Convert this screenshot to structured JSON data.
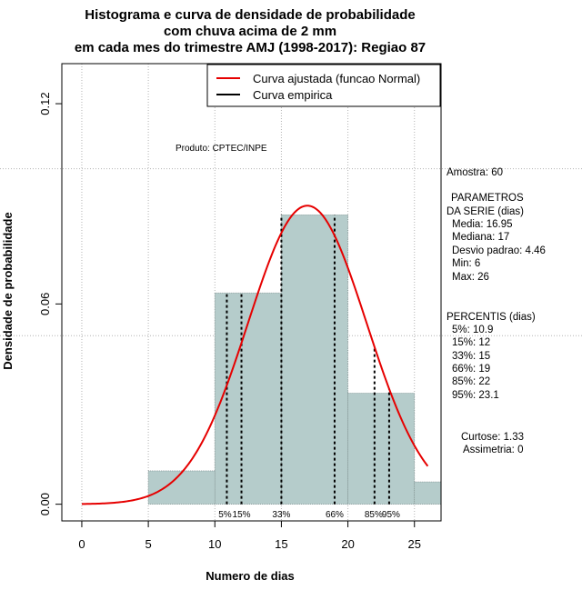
{
  "chart_data": {
    "type": "histogram",
    "title_lines": [
      "Histograma e curva de densidade de probabilidade",
      "com chuva acima de 2 mm",
      "em cada mes do trimestre AMJ (1998-2017): Regiao 87"
    ],
    "xlabel": "Numero de dias",
    "ylabel": "Densidade de probabilidade",
    "xlim": [
      -1.5,
      27
    ],
    "ylim": [
      -0.005,
      0.132
    ],
    "x_ticks": [
      0,
      5,
      10,
      15,
      20,
      25
    ],
    "y_ticks": [
      0.0,
      0.06,
      0.12
    ],
    "y_tick_labels": [
      "0.00",
      "0.06",
      "0.12"
    ],
    "bars": [
      {
        "from": 5,
        "to": 10,
        "density": 0.01
      },
      {
        "from": 10,
        "to": 15,
        "density": 0.0633
      },
      {
        "from": 15,
        "to": 20,
        "density": 0.0867
      },
      {
        "from": 20,
        "to": 25,
        "density": 0.0333
      },
      {
        "from": 25,
        "to": 27,
        "density": 0.0067
      }
    ],
    "normal_fit": {
      "mean": 16.95,
      "sd": 4.46,
      "x_from": 0,
      "x_to": 26
    },
    "legend": {
      "placement": "top-right",
      "entries": [
        {
          "label": "Curva ajustada (funcao Normal)",
          "color": "#e60000"
        },
        {
          "label": "Curva empirica",
          "color": "#000000"
        }
      ]
    },
    "produto": "Produto: CPTEC/INPE",
    "percentile_lines": [
      {
        "label": "5%",
        "value": 10.9
      },
      {
        "label": "15%",
        "value": 12
      },
      {
        "label": "33%",
        "value": 15
      },
      {
        "label": "66%",
        "value": 19
      },
      {
        "label": "85%",
        "value": 22
      },
      {
        "label": "95%",
        "value": 23.1
      }
    ],
    "side_panel": [
      "Amostra: 60",
      "PARAMETROS",
      "DA SERIE (dias)",
      "Media: 16.95",
      "Mediana: 17",
      "Desvio padrao: 4.46",
      "Min: 6",
      "Max: 26",
      "PERCENTIS (dias)",
      "5%: 10.9",
      "15%: 12",
      "33%: 15",
      "66%: 19",
      "85%: 22",
      "95%: 23.1",
      "Curtose: 1.33",
      "Assimetria: 0"
    ],
    "colors": {
      "bar_fill": "#b5cccb",
      "curve": "#e60000",
      "grid": "#b3b3b3"
    }
  }
}
